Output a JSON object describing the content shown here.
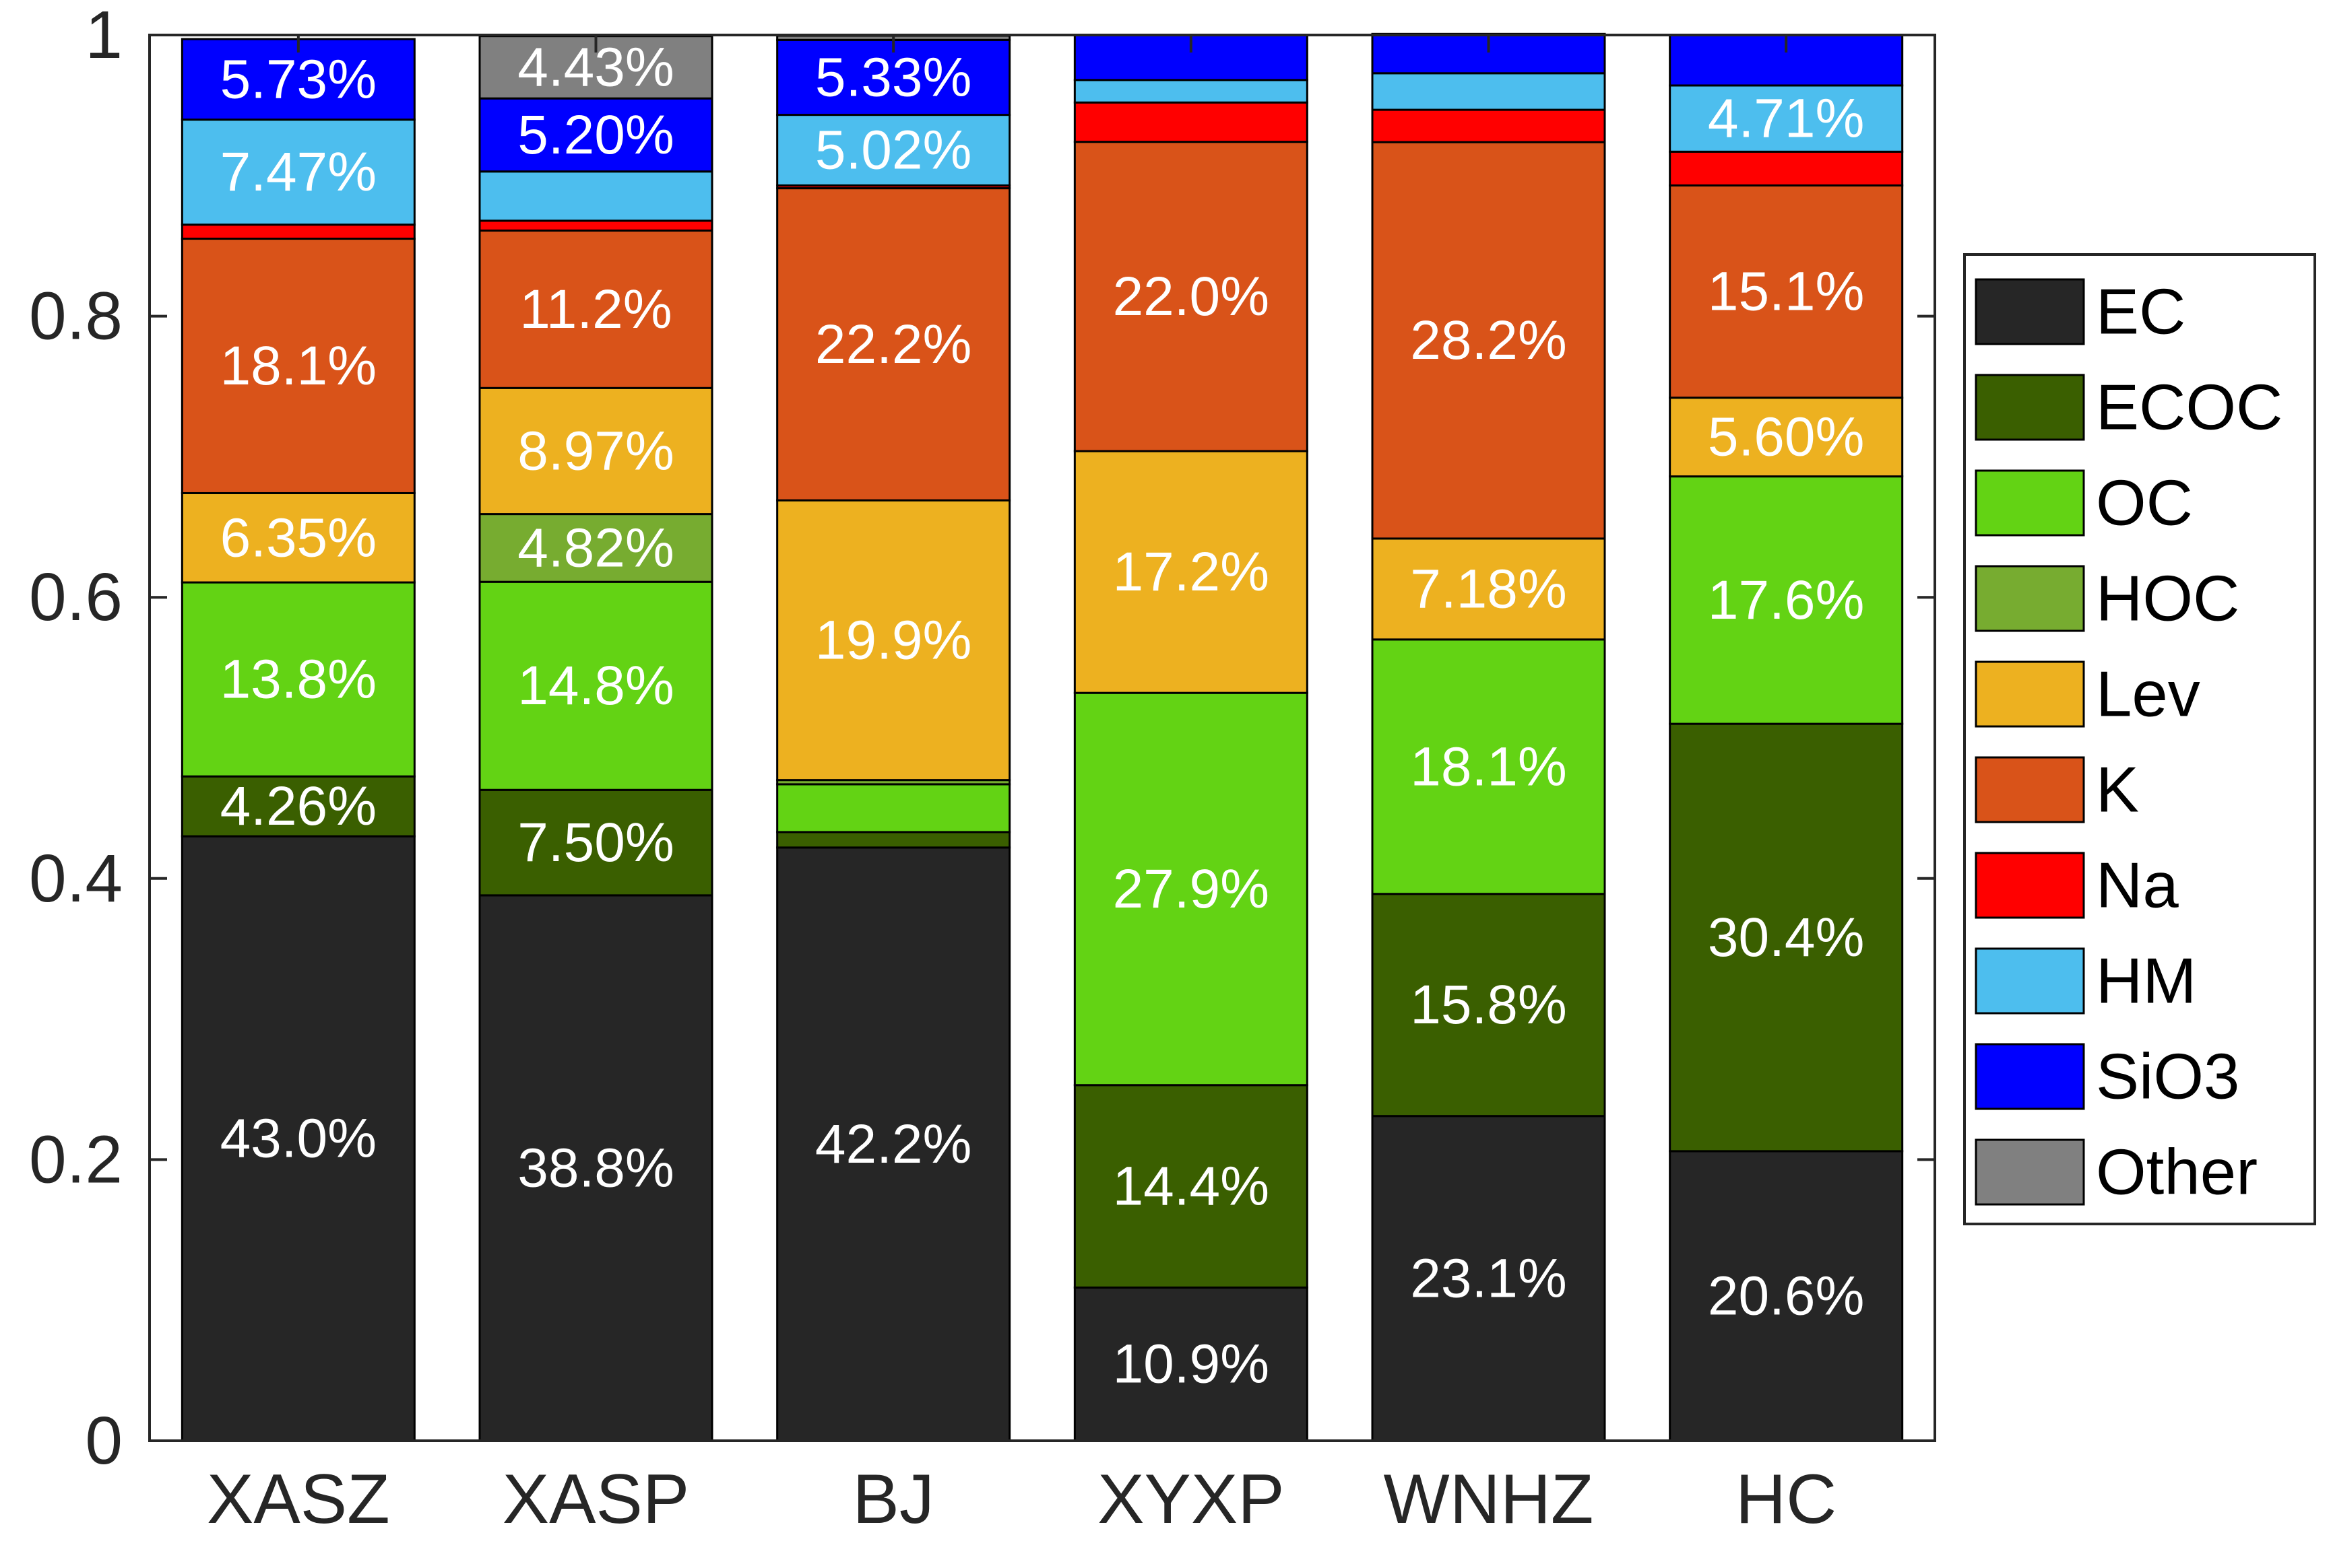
{
  "chart_data": {
    "type": "bar",
    "stacked": true,
    "categories": [
      "XASZ",
      "XASP",
      "BJ",
      "XYXP",
      "WNHZ",
      "HC"
    ],
    "ylim": [
      0,
      1
    ],
    "yticks": [
      "0",
      "0.2",
      "0.4",
      "0.6",
      "0.8",
      "1"
    ],
    "ytick_values": [
      0,
      0.2,
      0.4,
      0.6,
      0.8,
      1
    ],
    "legend_position": "right",
    "series": [
      {
        "name": "EC",
        "color": "#262626",
        "values": [
          0.43,
          0.388,
          0.422,
          0.109,
          0.231,
          0.206
        ],
        "labels": [
          "43.0%",
          "38.8%",
          "42.2%",
          "10.9%",
          "23.1%",
          "20.6%"
        ]
      },
      {
        "name": "ECOC",
        "color": "#3a5f00",
        "values": [
          0.0426,
          0.075,
          0.011,
          0.144,
          0.158,
          0.304
        ],
        "labels": [
          "4.26%",
          "7.50%",
          "",
          "14.4%",
          "15.8%",
          "30.4%"
        ]
      },
      {
        "name": "OC",
        "color": "#63d314",
        "values": [
          0.138,
          0.148,
          0.034,
          0.279,
          0.181,
          0.176
        ],
        "labels": [
          "13.8%",
          "14.8%",
          "",
          "27.9%",
          "18.1%",
          "17.6%"
        ]
      },
      {
        "name": "HOC",
        "color": "#77ac30",
        "values": [
          0.0,
          0.0482,
          0.003,
          0.0,
          0.0,
          0.0
        ],
        "labels": [
          "",
          "4.82%",
          "",
          "",
          "",
          ""
        ]
      },
      {
        "name": "Lev",
        "color": "#edb120",
        "values": [
          0.0635,
          0.0897,
          0.199,
          0.172,
          0.0718,
          0.056
        ],
        "labels": [
          "6.35%",
          "8.97%",
          "19.9%",
          "17.2%",
          "7.18%",
          "5.60%"
        ]
      },
      {
        "name": "K",
        "color": "#d95319",
        "values": [
          0.181,
          0.112,
          0.222,
          0.22,
          0.282,
          0.151
        ],
        "labels": [
          "18.1%",
          "11.2%",
          "22.2%",
          "22.0%",
          "28.2%",
          "15.1%"
        ]
      },
      {
        "name": "Na",
        "color": "#ff0000",
        "values": [
          0.01,
          0.007,
          0.002,
          0.028,
          0.023,
          0.024
        ],
        "labels": [
          "",
          "",
          "",
          "",
          "",
          ""
        ]
      },
      {
        "name": "HM",
        "color": "#4dbeee",
        "values": [
          0.0747,
          0.035,
          0.0502,
          0.016,
          0.026,
          0.0471
        ],
        "labels": [
          "7.47%",
          "",
          "5.02%",
          "",
          "",
          "4.71%"
        ]
      },
      {
        "name": "SiO3",
        "color": "#0000ff",
        "values": [
          0.0573,
          0.052,
          0.0533,
          0.032,
          0.028,
          0.036
        ],
        "labels": [
          "5.73%",
          "5.20%",
          "5.33%",
          "",
          "",
          ""
        ]
      },
      {
        "name": "Other",
        "color": "#808080",
        "values": [
          0.0,
          0.0443,
          0.003,
          0.0,
          0.0,
          0.0
        ],
        "labels": [
          "",
          "4.43%",
          "",
          "",
          "",
          ""
        ]
      }
    ]
  }
}
